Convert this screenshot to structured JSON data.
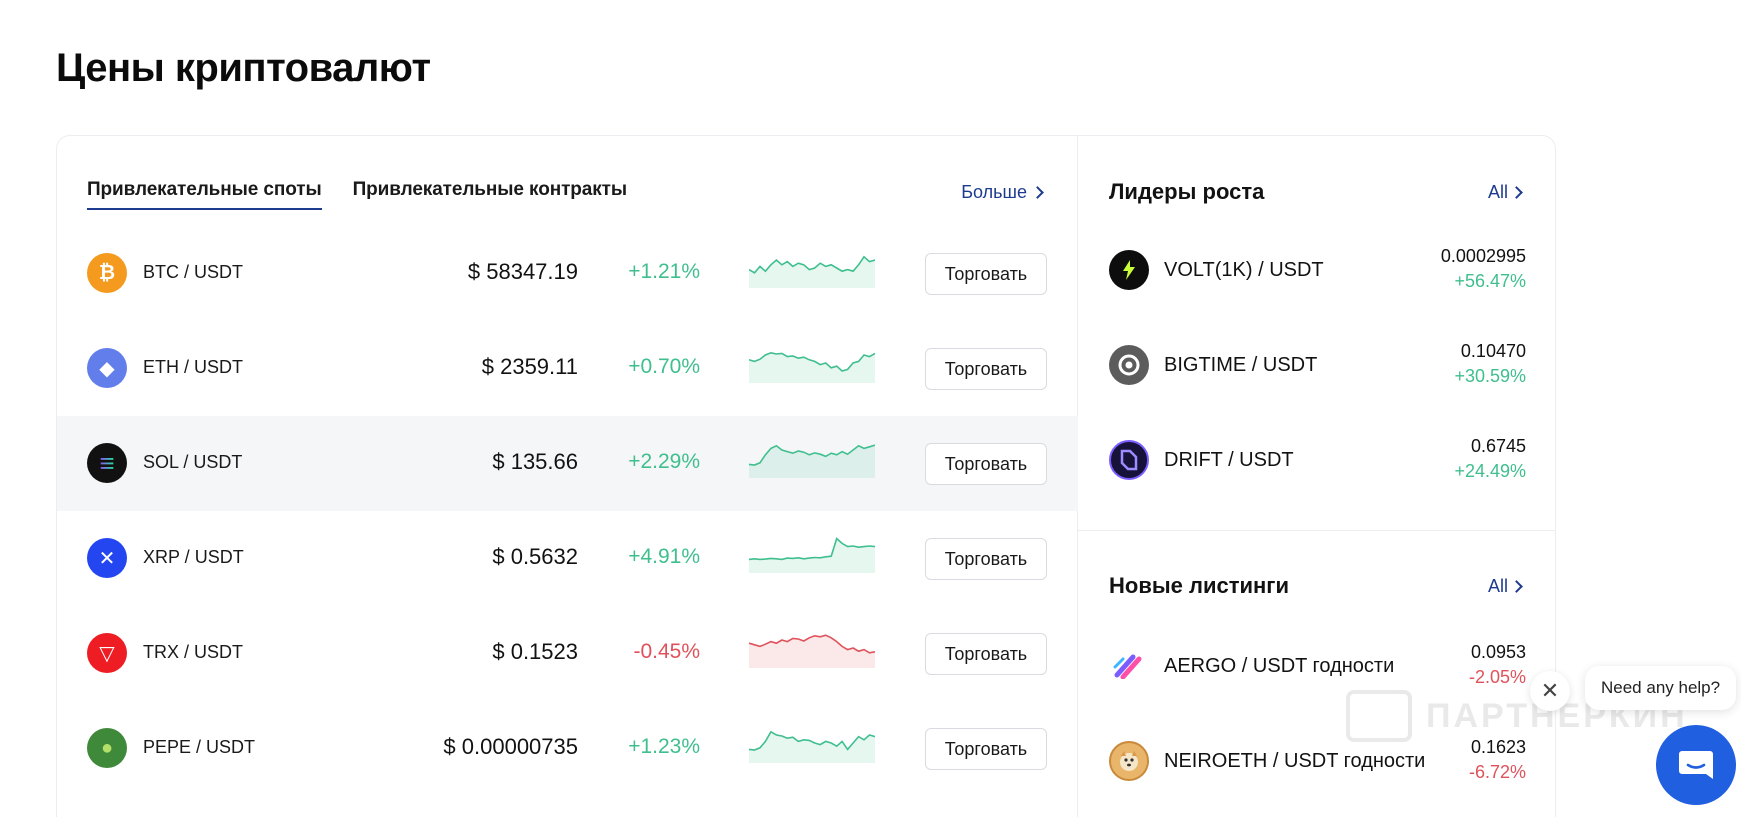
{
  "page": {
    "title": "Цены криптовалют"
  },
  "tabs": [
    {
      "label": "Привлекательные споты",
      "active": true
    },
    {
      "label": "Привлекательные контракты",
      "active": false
    }
  ],
  "more_label": "Больше",
  "coins": [
    {
      "pair": "BTC / USDT",
      "price": "$ 58347.19",
      "change": "+1.21%",
      "direction": "up",
      "icon": "bitcoin-icon",
      "color": "#f39a1f",
      "glyph": "₿",
      "spark": [
        0.45,
        0.35,
        0.55,
        0.4,
        0.6,
        0.75,
        0.6,
        0.7,
        0.55,
        0.65,
        0.6,
        0.45,
        0.5,
        0.65,
        0.55,
        0.6,
        0.5,
        0.4,
        0.45,
        0.4,
        0.6,
        0.85,
        0.7,
        0.75
      ]
    },
    {
      "pair": "ETH / USDT",
      "price": "$ 2359.11",
      "change": "+0.70%",
      "direction": "up",
      "icon": "ethereum-icon",
      "color": "#627eea",
      "glyph": "◆",
      "spark": [
        0.6,
        0.55,
        0.62,
        0.75,
        0.82,
        0.78,
        0.8,
        0.7,
        0.72,
        0.65,
        0.68,
        0.6,
        0.55,
        0.45,
        0.5,
        0.35,
        0.4,
        0.25,
        0.3,
        0.5,
        0.55,
        0.75,
        0.7,
        0.8
      ]
    },
    {
      "pair": "SOL / USDT",
      "price": "$ 135.66",
      "change": "+2.29%",
      "direction": "up",
      "icon": "solana-icon",
      "color": "#111111",
      "glyph": "≡",
      "spark": [
        0.3,
        0.28,
        0.35,
        0.6,
        0.8,
        0.88,
        0.75,
        0.7,
        0.65,
        0.72,
        0.68,
        0.6,
        0.66,
        0.62,
        0.55,
        0.65,
        0.6,
        0.7,
        0.62,
        0.75,
        0.88,
        0.8,
        0.85,
        0.9
      ]
    },
    {
      "pair": "XRP / USDT",
      "price": "$ 0.5632",
      "change": "+4.91%",
      "direction": "up",
      "icon": "xrp-icon",
      "color": "#2346f0",
      "glyph": "✕",
      "spark": [
        0.3,
        0.32,
        0.3,
        0.31,
        0.33,
        0.32,
        0.3,
        0.34,
        0.33,
        0.35,
        0.32,
        0.34,
        0.36,
        0.35,
        0.38,
        0.4,
        0.95,
        0.8,
        0.7,
        0.72,
        0.68,
        0.7,
        0.72,
        0.7
      ]
    },
    {
      "pair": "TRX / USDT",
      "price": "$ 0.1523",
      "change": "-0.45%",
      "direction": "down",
      "icon": "tron-icon",
      "color": "#ee1c23",
      "glyph": "▽",
      "spark": [
        0.65,
        0.6,
        0.55,
        0.62,
        0.7,
        0.65,
        0.75,
        0.7,
        0.8,
        0.78,
        0.72,
        0.82,
        0.88,
        0.85,
        0.9,
        0.82,
        0.7,
        0.55,
        0.45,
        0.5,
        0.4,
        0.45,
        0.35,
        0.38
      ]
    },
    {
      "pair": "PEPE / USDT",
      "price": "$ 0.00000735",
      "change": "+1.23%",
      "direction": "up",
      "icon": "pepe-icon",
      "color": "#3f8a3a",
      "glyph": "●",
      "spark": [
        0.3,
        0.28,
        0.35,
        0.55,
        0.85,
        0.75,
        0.72,
        0.65,
        0.68,
        0.55,
        0.6,
        0.58,
        0.5,
        0.45,
        0.55,
        0.5,
        0.4,
        0.55,
        0.3,
        0.5,
        0.7,
        0.6,
        0.75,
        0.7
      ]
    }
  ],
  "trade_label": "Торговать",
  "gainers": {
    "title": "Лидеры роста",
    "all_label": "All",
    "items": [
      {
        "pair": "VOLT(1K) / USDT",
        "price": "0.0002995",
        "change": "+56.47%",
        "direction": "up",
        "icon": "volt-icon"
      },
      {
        "pair": "BIGTIME / USDT",
        "price": "0.10470",
        "change": "+30.59%",
        "direction": "up",
        "icon": "bigtime-icon"
      },
      {
        "pair": "DRIFT / USDT",
        "price": "0.6745",
        "change": "+24.49%",
        "direction": "up",
        "icon": "drift-icon"
      }
    ]
  },
  "listings": {
    "title": "Новые листинги",
    "all_label": "All",
    "items": [
      {
        "pair": "AERGO / USDT годности",
        "price": "0.0953",
        "change": "-2.05%",
        "direction": "down",
        "icon": "aergo-icon"
      },
      {
        "pair": "NEIROETH / USDT годности",
        "price": "0.1623",
        "change": "-6.72%",
        "direction": "down",
        "icon": "neiro-icon"
      }
    ]
  },
  "watermark_text": "ПАРТНЕРКИН",
  "help": {
    "text": "Need any help?"
  },
  "colors": {
    "up": "#3fbf8e",
    "down": "#e0525b",
    "accent": "#1d3b8f",
    "chat": "#1f5fe0"
  }
}
